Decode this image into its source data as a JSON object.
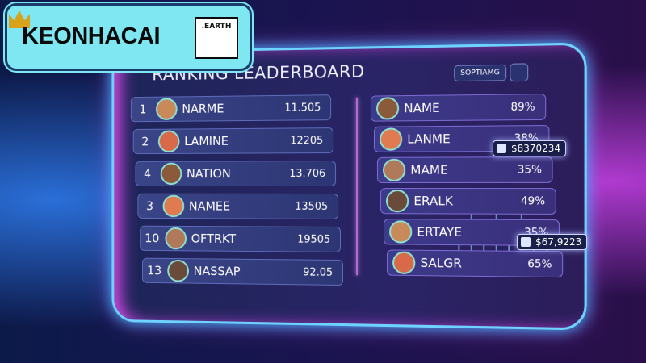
{
  "logo": {
    "brand": "KEONHACAI",
    "domain": ".EARTH"
  },
  "title": "RANKING LEADERBOARD",
  "filter_button": "SOPTIAMG",
  "left_rows": [
    {
      "rank": "1",
      "name": "NARME",
      "score": "11.505"
    },
    {
      "rank": "2",
      "name": "LAMINE",
      "score": "12205"
    },
    {
      "rank": "4",
      "name": "NATION",
      "score": "13.706"
    },
    {
      "rank": "3",
      "name": "NAMEE",
      "score": "13505"
    },
    {
      "rank": "10",
      "name": "OFTRKT",
      "score": "19505"
    },
    {
      "rank": "13",
      "name": "NASSAP",
      "score": "92.05"
    }
  ],
  "right_rows": [
    {
      "name": "NAME",
      "percent": "89%"
    },
    {
      "name": "LANME",
      "percent": "38%"
    },
    {
      "name": "MAME",
      "percent": "35%"
    },
    {
      "name": "ERALK",
      "percent": "49%"
    },
    {
      "name": "ERTAYE",
      "percent": "35%"
    },
    {
      "name": "SALGR",
      "percent": "65%"
    }
  ],
  "callouts": [
    "$8370234",
    "$67,9223"
  ]
}
